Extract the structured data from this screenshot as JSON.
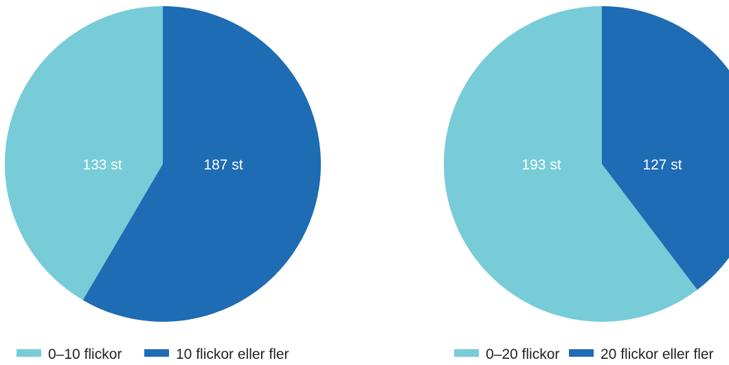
{
  "colors": {
    "light": "#77ccd8",
    "dark": "#1e6cb4"
  },
  "chart_data": [
    {
      "type": "pie",
      "slices": [
        {
          "label": "133 st",
          "value": 133,
          "legend": "0–10 flickor",
          "color": "#77ccd8"
        },
        {
          "label": "187 st",
          "value": 187,
          "legend": "10 flickor eller fler",
          "color": "#1e6cb4"
        }
      ],
      "legend_placement": "bottom"
    },
    {
      "type": "pie",
      "slices": [
        {
          "label": "193 st",
          "value": 193,
          "legend": "0–20 flickor",
          "color": "#77ccd8"
        },
        {
          "label": "127 st",
          "value": 127,
          "legend": "20 flickor eller fler",
          "color": "#1e6cb4"
        }
      ],
      "legend_placement": "bottom"
    }
  ]
}
